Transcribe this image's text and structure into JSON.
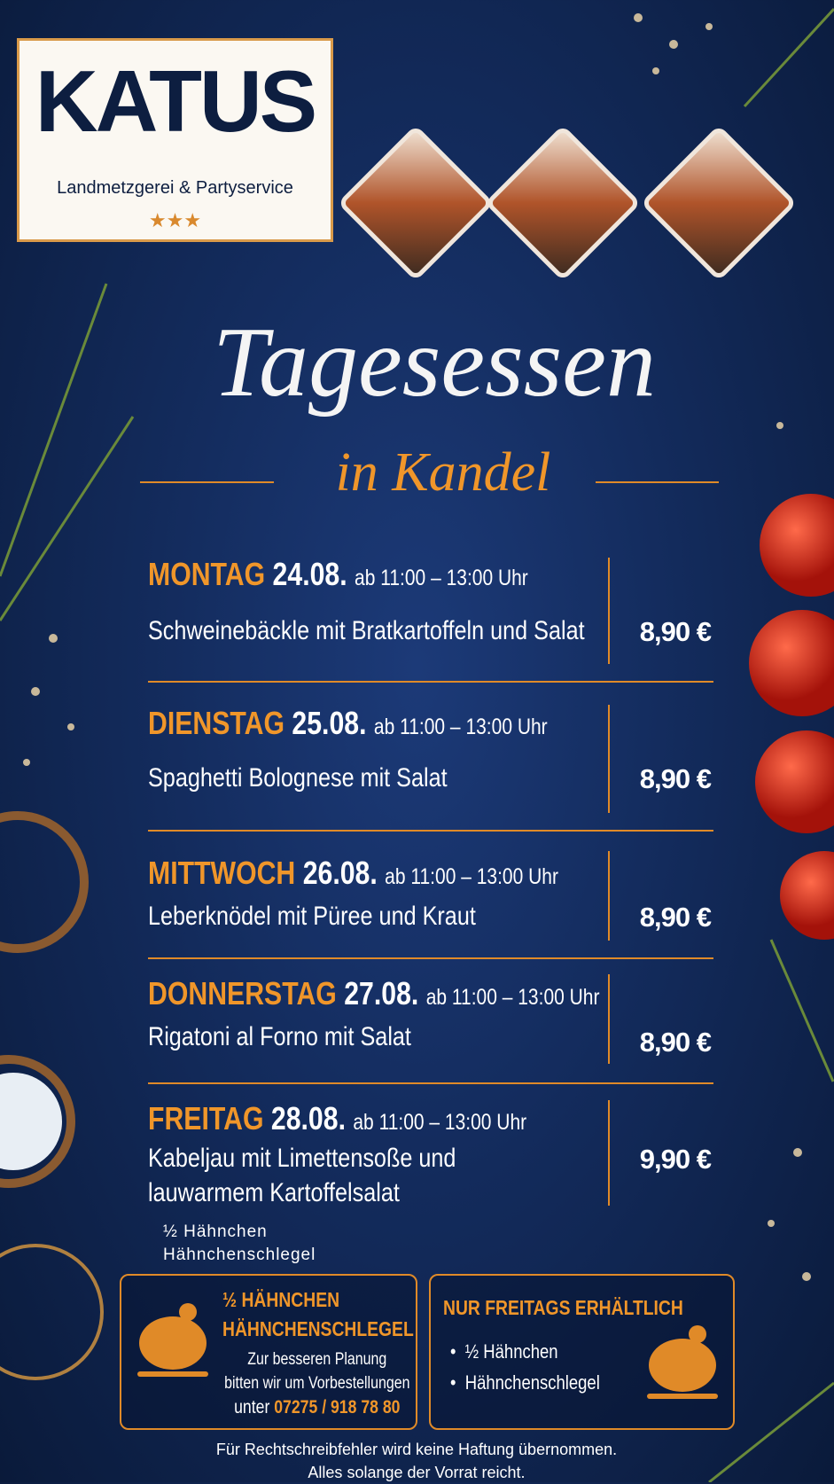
{
  "header": {
    "brand": "KATUS",
    "tagline": "Landmetzgerei & Partyservice",
    "stars": "★★★"
  },
  "title": "Tagesessen",
  "subtitle": "in Kandel",
  "days": [
    {
      "day": "MONTAG",
      "date": "24.08.",
      "time": "ab 11:00 – 13:00 Uhr",
      "dish": [
        "Schweinebäckle mit Bratkartoffeln und Salat"
      ],
      "price": "8,90 €"
    },
    {
      "day": "DIENSTAG",
      "date": "25.08.",
      "time": "ab 11:00 – 13:00 Uhr",
      "dish": [
        "Spaghetti Bolognese mit Salat"
      ],
      "price": "8,90 €"
    },
    {
      "day": "MITTWOCH",
      "date": "26.08.",
      "time": "ab 11:00 – 13:00 Uhr",
      "dish": [
        "Leberknödel mit Püree und Kraut"
      ],
      "price": "8,90 €"
    },
    {
      "day": "DONNERSTAG",
      "date": "27.08.",
      "time": "ab 11:00 – 13:00 Uhr",
      "dish": [
        "Rigatoni al Forno mit Salat"
      ],
      "price": "8,90 €"
    },
    {
      "day": "FREITAG",
      "date": "28.08.",
      "time": "ab 11:00 – 13:00 Uhr",
      "dish": [
        "Kabeljau mit Limettensoße und",
        "lauwarmem Kartoffelsalat"
      ],
      "price": "9,90 €"
    }
  ],
  "extra": [
    "½ Hähnchen",
    "Hähnchenschlegel"
  ],
  "left_box": {
    "title": [
      "½ HÄHNCHEN",
      "HÄHNCHENSCHLEGEL"
    ],
    "text": [
      "Zur besseren Planung",
      "bitten wir um Vorbestellungen"
    ],
    "phone_prefix": "unter",
    "phone": "07275 / 918 78 80"
  },
  "right_box": {
    "title": "NUR FREITAGS ERHÄLTLICH",
    "items": [
      "½ Hähnchen",
      "Hähnchenschlegel"
    ]
  },
  "footer": [
    "Für Rechtschreibfehler wird keine Haftung übernommen.",
    "Alles solange der Vorrat reicht."
  ]
}
